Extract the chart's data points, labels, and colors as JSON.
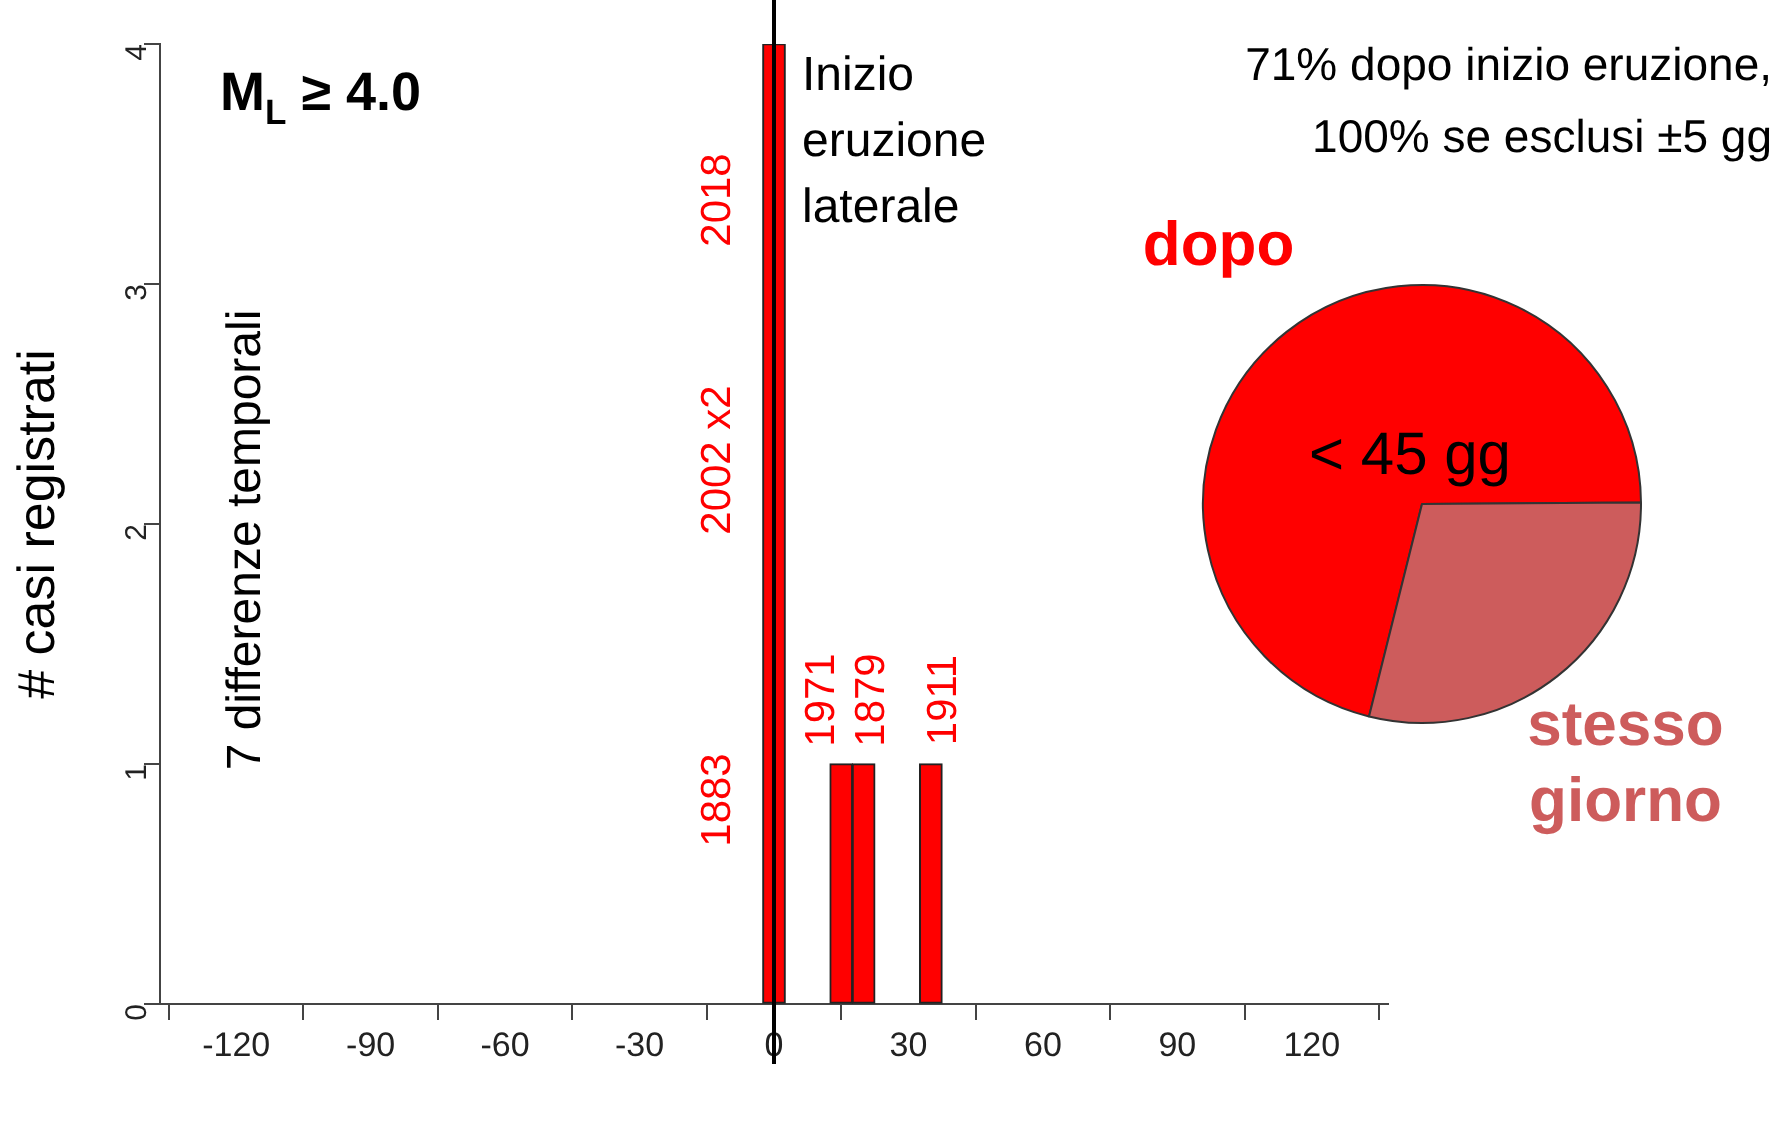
{
  "chart_data": [
    {
      "type": "histogram",
      "bins": [
        -2.5,
        2.5,
        7.5,
        12.5,
        17.5,
        22.5,
        27.5,
        32.5,
        37.5
      ],
      "values": [
        4,
        0,
        0,
        1,
        1,
        0,
        0,
        1
      ],
      "color": "#ff0000",
      "ylabel": "# casi registrati",
      "xlim": [
        -137,
        137
      ],
      "xticks": [
        -120,
        -90,
        -60,
        -30,
        0,
        30,
        60,
        90,
        120
      ],
      "ylim": [
        0,
        4
      ],
      "yticks": [
        0,
        1,
        2,
        3,
        4
      ],
      "grid": false,
      "legend": false,
      "ref_lines": [
        {
          "axis": "x",
          "value": 0,
          "label": "Inizio eruzione laterale",
          "color": "#000000"
        }
      ],
      "annotations": [
        "M$_{L}$ ≥ 4.0",
        "7 differenze temporali",
        "2018",
        "2002 x2",
        "1883",
        "1971",
        "1879",
        "1911"
      ]
    },
    {
      "type": "pie",
      "categories": [
        "dopo",
        "stesso giorno"
      ],
      "values": [
        71,
        29
      ],
      "colors": [
        "#ff0000",
        "#cd5c5c"
      ],
      "legend": false,
      "annotations": [
        "< 45 gg",
        "71% dopo inizio eruzione,",
        "100% se esclusi ±5 gg"
      ]
    }
  ]
}
